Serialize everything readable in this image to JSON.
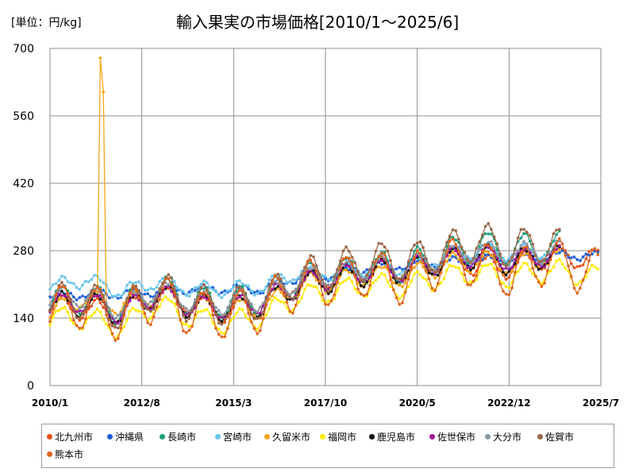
{
  "unit_label": "[単位：円/kg]",
  "chart_data": {
    "type": "line",
    "title": "輸入果実の市場価格[2010/1～2025/6]",
    "xlabel": "",
    "ylabel": "",
    "ylim": [
      0,
      700
    ],
    "yticks": [
      0,
      140,
      280,
      420,
      560,
      700
    ],
    "xlim": [
      "2010/1",
      "2025/7"
    ],
    "xticks": [
      "2010/1",
      "2012/8",
      "2015/3",
      "2017/10",
      "2020/5",
      "2022/12",
      "2025/7"
    ],
    "grid": true,
    "legend_position": "bottom",
    "series": [
      {
        "name": "北九州市",
        "color": "#e8501e",
        "end": "2025/6",
        "base": [
          165,
          160,
          148,
          190,
          170,
          150,
          180,
          220,
          225,
          245,
          230,
          265,
          250,
          245,
          270,
          265,
          255,
          278,
          270,
          260,
          285,
          305,
          330,
          335,
          340
        ],
        "amp": 22
      },
      {
        "name": "沖縄県",
        "color": "#1f5fd8",
        "end": "2025/6",
        "base": [
          185,
          190,
          190,
          195,
          200,
          200,
          200,
          225,
          230,
          245,
          250,
          255,
          260,
          265,
          270,
          270,
          265,
          270,
          275,
          275,
          285,
          300,
          320,
          335,
          345
        ],
        "amp": 8
      },
      {
        "name": "長崎市",
        "color": "#1e9e78",
        "end": "2024/5",
        "base": [
          175,
          180,
          160,
          200,
          175,
          170,
          180,
          220,
          230,
          245,
          245,
          270,
          290,
          280,
          290,
          275,
          270,
          280,
          270,
          285,
          300,
          320,
          340,
          355,
          360
        ],
        "amp": 32
      },
      {
        "name": "宮崎市",
        "color": "#6cc6ec",
        "end": "2024/5",
        "base": [
          205,
          220,
          195,
          215,
          200,
          200,
          205,
          235,
          235,
          245,
          245,
          265,
          280,
          275,
          280,
          270,
          265,
          275,
          270,
          280,
          290,
          300,
          315,
          320,
          320
        ],
        "amp": 14
      },
      {
        "name": "久留米市",
        "color": "#f2a516",
        "end": "2024/5",
        "base": [
          150,
          185,
          165,
          190,
          165,
          160,
          160,
          210,
          215,
          230,
          225,
          250,
          260,
          250,
          265,
          260,
          250,
          265,
          255,
          265,
          275,
          290,
          300,
          300,
          300
        ],
        "amp": 20
      },
      {
        "name": "福岡市",
        "color": "#ffea00",
        "end": "2025/6",
        "base": [
          140,
          140,
          120,
          170,
          140,
          130,
          145,
          185,
          195,
          210,
          205,
          225,
          235,
          225,
          240,
          230,
          220,
          230,
          225,
          235,
          245,
          250,
          255,
          255,
          265
        ],
        "amp": 22
      },
      {
        "name": "鹿児島市",
        "color": "#111111",
        "end": "2024/5",
        "base": [
          165,
          170,
          150,
          190,
          165,
          160,
          165,
          210,
          220,
          235,
          240,
          255,
          270,
          255,
          270,
          260,
          250,
          260,
          250,
          265,
          275,
          285,
          290,
          290,
          290
        ],
        "amp": 25
      },
      {
        "name": "佐世保市",
        "color": "#a01a9a",
        "end": "2024/5",
        "base": [
          165,
          175,
          150,
          190,
          165,
          160,
          175,
          210,
          225,
          240,
          240,
          260,
          270,
          260,
          270,
          260,
          255,
          270,
          265,
          275,
          285,
          300,
          310,
          305,
          305
        ],
        "amp": 22
      },
      {
        "name": "大分市",
        "color": "#8896a8",
        "end": "2024/5",
        "base": [
          180,
          185,
          160,
          200,
          175,
          170,
          180,
          220,
          230,
          245,
          245,
          265,
          280,
          270,
          280,
          270,
          265,
          275,
          270,
          280,
          290,
          300,
          310,
          305,
          305
        ],
        "amp": 22
      },
      {
        "name": "佐賀市",
        "color": "#9a6748",
        "end": "2024/5",
        "base": [
          170,
          180,
          150,
          200,
          170,
          165,
          175,
          225,
          240,
          260,
          255,
          275,
          300,
          285,
          295,
          280,
          270,
          280,
          270,
          285,
          295,
          310,
          320,
          320,
          320
        ],
        "amp": 38
      },
      {
        "name": "熊本市",
        "color": "#e0641e",
        "end": "2025/6",
        "base": [
          160,
          165,
          140,
          185,
          150,
          145,
          160,
          210,
          215,
          235,
          215,
          255,
          255,
          230,
          260,
          240,
          225,
          245,
          220,
          245,
          265,
          295,
          320,
          330,
          340
        ],
        "amp": 48
      }
    ],
    "kurume_spike": [
      {
        "date": "2011/6",
        "value": 680
      },
      {
        "date": "2011/7",
        "value": 610
      }
    ]
  }
}
